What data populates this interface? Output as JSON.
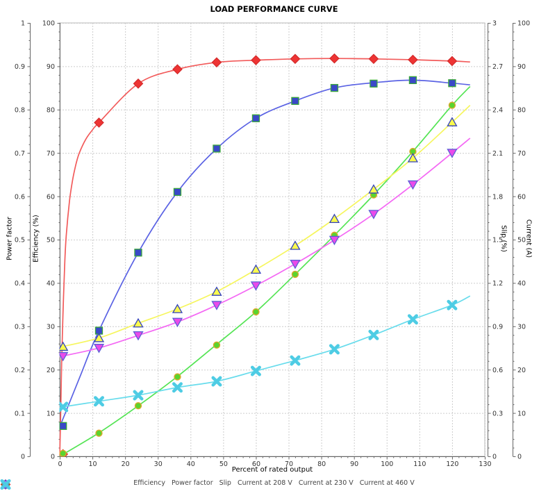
{
  "chart_data": {
    "type": "line",
    "title": "LOAD PERFORMANCE CURVE",
    "axes": {
      "x": {
        "label": "Percent of rated output",
        "min": 0,
        "max": 130,
        "step": 10
      },
      "power_factor": {
        "label": "Power factor",
        "min": 0,
        "max": 1,
        "step": 0.1
      },
      "efficiency": {
        "label": "Efficiency (%)",
        "min": 0,
        "max": 100,
        "step": 10
      },
      "slip": {
        "label": "Slip (%)",
        "min": 0,
        "max": 3,
        "step": 0.3
      },
      "current": {
        "label": "Current (A)",
        "min": 0,
        "max": 100,
        "step": 10
      }
    },
    "x": [
      1,
      12,
      24,
      36,
      48,
      60,
      72,
      84,
      96,
      108,
      120
    ],
    "series": [
      {
        "name": "Efficiency",
        "axis": "efficiency",
        "marker": "diamond",
        "line_color": "#f25a5a",
        "fill": "#ee3434",
        "stroke": "#d42a2a",
        "values": [
          0.5,
          77,
          86,
          89.3,
          90.9,
          91.4,
          91.7,
          91.8,
          91.7,
          91.5,
          91.2
        ],
        "curve_points": [
          [
            0,
            0
          ],
          [
            0.3,
            10
          ],
          [
            0.6,
            22
          ],
          [
            1,
            33
          ],
          [
            1.5,
            44
          ],
          [
            2,
            51
          ],
          [
            3,
            59
          ],
          [
            4,
            64
          ],
          [
            5,
            67.5
          ],
          [
            6,
            70
          ],
          [
            8,
            73.2
          ],
          [
            10,
            75.3
          ],
          [
            12,
            77
          ],
          [
            24,
            86
          ],
          [
            36,
            89.3
          ],
          [
            48,
            90.9
          ],
          [
            60,
            91.4
          ],
          [
            72,
            91.7
          ],
          [
            84,
            91.8
          ],
          [
            96,
            91.7
          ],
          [
            108,
            91.5
          ],
          [
            120,
            91.2
          ],
          [
            125.5,
            91.0
          ]
        ]
      },
      {
        "name": "Power factor",
        "axis": "power_factor",
        "marker": "square",
        "line_color": "#5a62e4",
        "fill": "#3a48c8",
        "stroke": "#3aa83a",
        "values": [
          0.07,
          0.29,
          0.47,
          0.61,
          0.71,
          0.78,
          0.82,
          0.85,
          0.86,
          0.868,
          0.861
        ],
        "curve_points": [
          [
            0,
            0.068
          ],
          [
            6,
            0.18
          ],
          [
            12,
            0.29
          ],
          [
            24,
            0.47
          ],
          [
            36,
            0.61
          ],
          [
            48,
            0.71
          ],
          [
            60,
            0.78
          ],
          [
            72,
            0.82
          ],
          [
            84,
            0.85
          ],
          [
            96,
            0.862
          ],
          [
            108,
            0.868
          ],
          [
            120,
            0.861
          ],
          [
            125.5,
            0.857
          ]
        ]
      },
      {
        "name": "Slip",
        "axis": "slip",
        "marker": "circle",
        "line_color": "#54e454",
        "fill": "#5ad42e",
        "stroke": "#dca82c",
        "values": [
          0.02,
          0.16,
          0.35,
          0.55,
          0.77,
          1.0,
          1.26,
          1.53,
          1.81,
          2.11,
          2.43
        ],
        "curve_points": [
          [
            0,
            0
          ],
          [
            12,
            0.163
          ],
          [
            24,
            0.35
          ],
          [
            36,
            0.553
          ],
          [
            48,
            0.775
          ],
          [
            60,
            1.0
          ],
          [
            72,
            1.26
          ],
          [
            84,
            1.53
          ],
          [
            96,
            1.81
          ],
          [
            108,
            2.11
          ],
          [
            120,
            2.43
          ],
          [
            125.5,
            2.56
          ]
        ]
      },
      {
        "name": "Current at 208 V",
        "axis": "current",
        "marker": "triangle-up",
        "line_color": "#f6f65e",
        "fill": "#fafa4c",
        "stroke": "#3442bc",
        "values": [
          25.3,
          27.3,
          30.7,
          34.0,
          38.0,
          43.1,
          48.6,
          54.8,
          61.6,
          68.8,
          77.1
        ],
        "curve_points": [
          [
            0,
            25.2
          ],
          [
            12,
            27.3
          ],
          [
            24,
            30.7
          ],
          [
            36,
            34.0
          ],
          [
            48,
            38.0
          ],
          [
            60,
            43.1
          ],
          [
            72,
            48.6
          ],
          [
            84,
            54.8
          ],
          [
            96,
            61.6
          ],
          [
            108,
            68.8
          ],
          [
            120,
            77.1
          ],
          [
            125.5,
            81.0
          ]
        ]
      },
      {
        "name": "Current at 230 V",
        "axis": "current",
        "marker": "triangle-down",
        "line_color": "#f468f4",
        "fill": "#ea4aea",
        "stroke": "#5a60d6",
        "values": [
          23.1,
          25.0,
          27.9,
          31.0,
          34.9,
          39.4,
          44.4,
          49.9,
          55.9,
          62.7,
          70.0
        ],
        "curve_points": [
          [
            0,
            23.0
          ],
          [
            12,
            25.0
          ],
          [
            24,
            27.9
          ],
          [
            36,
            31.0
          ],
          [
            48,
            34.9
          ],
          [
            60,
            39.4
          ],
          [
            72,
            44.4
          ],
          [
            84,
            49.9
          ],
          [
            96,
            55.9
          ],
          [
            108,
            62.7
          ],
          [
            120,
            70.0
          ],
          [
            125.5,
            73.4
          ]
        ]
      },
      {
        "name": "Current at 460 V",
        "axis": "current",
        "marker": "xmark",
        "line_color": "#68dcec",
        "fill": "#4eccE4",
        "stroke": "#4eccE4",
        "values": [
          11.4,
          12.7,
          14.1,
          15.9,
          17.3,
          19.7,
          22.1,
          24.7,
          28.0,
          31.6,
          34.9
        ],
        "curve_points": [
          [
            0,
            11.3
          ],
          [
            12,
            12.7
          ],
          [
            24,
            14.1
          ],
          [
            36,
            15.9
          ],
          [
            48,
            17.3
          ],
          [
            60,
            19.7
          ],
          [
            72,
            22.1
          ],
          [
            84,
            24.7
          ],
          [
            96,
            28.0
          ],
          [
            108,
            31.6
          ],
          [
            120,
            34.9
          ],
          [
            125.5,
            37.0
          ]
        ]
      }
    ],
    "grid": {
      "color": "#cccccc",
      "on": true
    },
    "legend_position": "bottom"
  }
}
